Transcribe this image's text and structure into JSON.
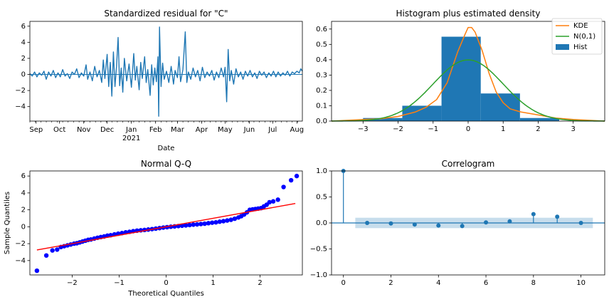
{
  "chart_data": [
    {
      "type": "line",
      "title": "Standardized residual for \"C\"",
      "xlabel": "Date",
      "ylabel": "",
      "ylim": [
        -5.8,
        6.6
      ],
      "yticks": [
        -4,
        -2,
        0,
        2,
        4,
        6
      ],
      "x_start": "2020-08-24",
      "x_end": "2021-08-08",
      "xticks": [
        {
          "label": "Sep",
          "date": "2020-09-01"
        },
        {
          "label": "Oct",
          "date": "2020-10-01"
        },
        {
          "label": "Nov",
          "date": "2020-11-01"
        },
        {
          "label": "Dec",
          "date": "2020-12-01"
        },
        {
          "label": "Jan",
          "date": "2021-01-01",
          "sublabel": "2021"
        },
        {
          "label": "Feb",
          "date": "2021-02-01"
        },
        {
          "label": "Mar",
          "date": "2021-03-01"
        },
        {
          "label": "Apr",
          "date": "2021-04-01"
        },
        {
          "label": "May",
          "date": "2021-05-01"
        },
        {
          "label": "Jun",
          "date": "2021-06-01"
        },
        {
          "label": "Jul",
          "date": "2021-07-01"
        },
        {
          "label": "Aug",
          "date": "2021-08-01"
        }
      ],
      "series": [
        {
          "color": "#1f77b4",
          "points": [
            [
              "2020-08-24",
              0.1
            ],
            [
              "2020-08-27",
              -0.2
            ],
            [
              "2020-08-30",
              0.3
            ],
            [
              "2020-09-02",
              -0.3
            ],
            [
              "2020-09-05",
              0.2
            ],
            [
              "2020-09-08",
              -0.1
            ],
            [
              "2020-09-11",
              0.4
            ],
            [
              "2020-09-14",
              -0.6
            ],
            [
              "2020-09-17",
              0.3
            ],
            [
              "2020-09-20",
              -0.2
            ],
            [
              "2020-09-23",
              0.5
            ],
            [
              "2020-09-26",
              -0.4
            ],
            [
              "2020-09-29",
              0.2
            ],
            [
              "2020-10-02",
              -0.3
            ],
            [
              "2020-10-05",
              0.6
            ],
            [
              "2020-10-08",
              -0.2
            ],
            [
              "2020-10-11",
              0.1
            ],
            [
              "2020-10-14",
              -0.5
            ],
            [
              "2020-10-17",
              0.3
            ],
            [
              "2020-10-20",
              0.0
            ],
            [
              "2020-10-23",
              0.7
            ],
            [
              "2020-10-26",
              -0.4
            ],
            [
              "2020-10-29",
              0.2
            ],
            [
              "2020-11-01",
              -0.2
            ],
            [
              "2020-11-04",
              1.2
            ],
            [
              "2020-11-06",
              -0.6
            ],
            [
              "2020-11-09",
              0.3
            ],
            [
              "2020-11-12",
              -0.8
            ],
            [
              "2020-11-15",
              1.0
            ],
            [
              "2020-11-18",
              -0.3
            ],
            [
              "2020-11-21",
              0.5
            ],
            [
              "2020-11-24",
              -1.0
            ],
            [
              "2020-11-26",
              1.8
            ],
            [
              "2020-11-28",
              -0.5
            ],
            [
              "2020-12-01",
              2.5
            ],
            [
              "2020-12-03",
              -1.5
            ],
            [
              "2020-12-05",
              1.5
            ],
            [
              "2020-12-07",
              -2.7
            ],
            [
              "2020-12-09",
              2.8
            ],
            [
              "2020-12-11",
              -1.5
            ],
            [
              "2020-12-13",
              1.0
            ],
            [
              "2020-12-15",
              4.6
            ],
            [
              "2020-12-17",
              -1.4
            ],
            [
              "2020-12-19",
              0.8
            ],
            [
              "2020-12-21",
              -2.2
            ],
            [
              "2020-12-23",
              2.0
            ],
            [
              "2020-12-26",
              -0.8
            ],
            [
              "2020-12-29",
              1.3
            ],
            [
              "2021-01-01",
              -1.6
            ],
            [
              "2021-01-04",
              2.6
            ],
            [
              "2021-01-06",
              -0.7
            ],
            [
              "2021-01-08",
              1.0
            ],
            [
              "2021-01-11",
              -1.9
            ],
            [
              "2021-01-13",
              1.5
            ],
            [
              "2021-01-15",
              -0.5
            ],
            [
              "2021-01-18",
              2.2
            ],
            [
              "2021-01-20",
              -1.0
            ],
            [
              "2021-01-22",
              0.6
            ],
            [
              "2021-01-25",
              -2.6
            ],
            [
              "2021-01-27",
              1.2
            ],
            [
              "2021-01-29",
              -1.3
            ],
            [
              "2021-01-31",
              0.8
            ],
            [
              "2021-02-02",
              -0.9
            ],
            [
              "2021-02-04",
              2.2
            ],
            [
              "2021-02-05",
              -5.2
            ],
            [
              "2021-02-06",
              5.9
            ],
            [
              "2021-02-08",
              -1.5
            ],
            [
              "2021-02-10",
              1.4
            ],
            [
              "2021-02-12",
              -0.6
            ],
            [
              "2021-02-15",
              0.4
            ],
            [
              "2021-02-18",
              -1.0
            ],
            [
              "2021-02-21",
              1.0
            ],
            [
              "2021-02-24",
              -1.2
            ],
            [
              "2021-02-26",
              0.5
            ],
            [
              "2021-03-01",
              -0.4
            ],
            [
              "2021-03-03",
              2.2
            ],
            [
              "2021-03-05",
              -0.9
            ],
            [
              "2021-03-08",
              0.6
            ],
            [
              "2021-03-11",
              5.3
            ],
            [
              "2021-03-13",
              -1.0
            ],
            [
              "2021-03-15",
              0.3
            ],
            [
              "2021-03-18",
              -0.6
            ],
            [
              "2021-03-21",
              0.8
            ],
            [
              "2021-03-24",
              -0.3
            ],
            [
              "2021-03-27",
              0.5
            ],
            [
              "2021-03-30",
              -0.8
            ],
            [
              "2021-04-02",
              0.9
            ],
            [
              "2021-04-05",
              -0.4
            ],
            [
              "2021-04-08",
              0.3
            ],
            [
              "2021-04-11",
              -0.2
            ],
            [
              "2021-04-14",
              0.5
            ],
            [
              "2021-04-17",
              -0.7
            ],
            [
              "2021-04-20",
              0.3
            ],
            [
              "2021-04-23",
              -0.4
            ],
            [
              "2021-04-26",
              0.8
            ],
            [
              "2021-04-29",
              -0.3
            ],
            [
              "2021-05-01",
              0.9
            ],
            [
              "2021-05-03",
              -3.4
            ],
            [
              "2021-05-05",
              3.1
            ],
            [
              "2021-05-07",
              -0.8
            ],
            [
              "2021-05-09",
              0.5
            ],
            [
              "2021-05-12",
              -1.2
            ],
            [
              "2021-05-15",
              0.7
            ],
            [
              "2021-05-18",
              -0.3
            ],
            [
              "2021-05-21",
              0.3
            ],
            [
              "2021-05-24",
              -0.6
            ],
            [
              "2021-05-27",
              0.4
            ],
            [
              "2021-05-30",
              -0.2
            ],
            [
              "2021-06-02",
              0.5
            ],
            [
              "2021-06-05",
              -0.3
            ],
            [
              "2021-06-08",
              0.2
            ],
            [
              "2021-06-11",
              -0.5
            ],
            [
              "2021-06-14",
              0.4
            ],
            [
              "2021-06-17",
              -0.1
            ],
            [
              "2021-06-20",
              0.3
            ],
            [
              "2021-06-23",
              -0.4
            ],
            [
              "2021-06-26",
              0.2
            ],
            [
              "2021-06-29",
              -0.2
            ],
            [
              "2021-07-02",
              0.4
            ],
            [
              "2021-07-05",
              -0.3
            ],
            [
              "2021-07-08",
              0.3
            ],
            [
              "2021-07-11",
              -0.2
            ],
            [
              "2021-07-14",
              0.2
            ],
            [
              "2021-07-17",
              -0.1
            ],
            [
              "2021-07-20",
              0.4
            ],
            [
              "2021-07-23",
              -0.2
            ],
            [
              "2021-07-26",
              0.3
            ],
            [
              "2021-07-29",
              0.1
            ],
            [
              "2021-08-01",
              0.4
            ],
            [
              "2021-08-04",
              0.2
            ],
            [
              "2021-08-06",
              0.7
            ],
            [
              "2021-08-08",
              0.4
            ]
          ]
        }
      ],
      "reference_lines": [
        {
          "y": 0,
          "color": "#1f77b4"
        }
      ]
    },
    {
      "type": "bar",
      "title": "Histogram plus estimated density",
      "xlim": [
        -3.9,
        3.9
      ],
      "ylim": [
        0,
        0.65
      ],
      "xticks": [
        -3,
        -2,
        -1,
        0,
        1,
        2,
        3
      ],
      "yticks": [
        0.0,
        0.1,
        0.2,
        0.3,
        0.4,
        0.5,
        0.6
      ],
      "legend_position": "top-right",
      "histogram": {
        "name": "Hist",
        "color": "#1f77b4",
        "bins": [
          {
            "from": -3.0,
            "to": -1.88,
            "value": 0.02
          },
          {
            "from": -1.88,
            "to": -0.76,
            "value": 0.1
          },
          {
            "from": -0.76,
            "to": 0.36,
            "value": 0.55
          },
          {
            "from": 0.36,
            "to": 1.48,
            "value": 0.18
          },
          {
            "from": 1.48,
            "to": 2.6,
            "value": 0.02
          }
        ]
      },
      "series": [
        {
          "name": "KDE",
          "color": "#ff7f0e",
          "x": [
            -3.9,
            -3.0,
            -2.5,
            -2.0,
            -1.5,
            -1.2,
            -0.9,
            -0.6,
            -0.3,
            -0.1,
            0.0,
            0.1,
            0.2,
            0.4,
            0.6,
            0.8,
            1.0,
            1.2,
            1.5,
            2.0,
            2.5,
            3.0,
            3.9
          ],
          "y": [
            0.0,
            0.01,
            0.015,
            0.03,
            0.06,
            0.09,
            0.14,
            0.25,
            0.45,
            0.56,
            0.61,
            0.61,
            0.58,
            0.46,
            0.31,
            0.19,
            0.12,
            0.08,
            0.06,
            0.04,
            0.02,
            0.01,
            0.0
          ]
        },
        {
          "name": "N(0,1)",
          "color": "#2ca02c",
          "distribution": "normal",
          "mean": 0,
          "sd": 1
        }
      ]
    },
    {
      "type": "scatter",
      "title": "Normal Q-Q",
      "xlabel": "Theoretical Quantiles",
      "ylabel": "Sample Quantiles",
      "xlim": [
        -2.9,
        2.9
      ],
      "ylim": [
        -5.7,
        6.6
      ],
      "xticks": [
        -2,
        -1,
        0,
        1,
        2
      ],
      "yticks": [
        -4,
        -2,
        0,
        2,
        4,
        6
      ],
      "series": [
        {
          "color": "#0000ff",
          "x": [
            -2.75,
            -2.55,
            -2.42,
            -2.32,
            -2.24,
            -2.17,
            -2.1,
            -2.03,
            -1.96,
            -1.9,
            -1.84,
            -1.78,
            -1.72,
            -1.66,
            -1.6,
            -1.53,
            -1.46,
            -1.39,
            -1.32,
            -1.25,
            -1.18,
            -1.1,
            -1.02,
            -0.94,
            -0.86,
            -0.78,
            -0.7,
            -0.62,
            -0.54,
            -0.46,
            -0.38,
            -0.3,
            -0.22,
            -0.14,
            -0.06,
            0.02,
            0.1,
            0.18,
            0.26,
            0.34,
            0.42,
            0.5,
            0.58,
            0.66,
            0.74,
            0.82,
            0.9,
            0.98,
            1.06,
            1.14,
            1.22,
            1.3,
            1.38,
            1.46,
            1.54,
            1.6,
            1.66,
            1.72,
            1.78,
            1.84,
            1.9,
            1.96,
            2.02,
            2.08,
            2.14,
            2.2,
            2.28,
            2.38,
            2.5,
            2.66,
            2.78
          ],
          "y": [
            -5.2,
            -3.4,
            -2.8,
            -2.7,
            -2.4,
            -2.3,
            -2.2,
            -2.1,
            -2.0,
            -1.95,
            -1.85,
            -1.75,
            -1.65,
            -1.55,
            -1.5,
            -1.4,
            -1.3,
            -1.22,
            -1.15,
            -1.05,
            -1.0,
            -0.9,
            -0.82,
            -0.75,
            -0.66,
            -0.6,
            -0.52,
            -0.46,
            -0.42,
            -0.38,
            -0.33,
            -0.28,
            -0.22,
            -0.16,
            -0.1,
            -0.05,
            0.0,
            0.04,
            0.08,
            0.12,
            0.16,
            0.2,
            0.25,
            0.28,
            0.32,
            0.36,
            0.42,
            0.48,
            0.52,
            0.6,
            0.66,
            0.74,
            0.82,
            0.95,
            1.1,
            1.25,
            1.45,
            1.7,
            2.0,
            2.05,
            2.1,
            2.15,
            2.2,
            2.4,
            2.6,
            2.9,
            3.0,
            3.2,
            4.7,
            5.5,
            6.0
          ]
        }
      ],
      "reference_line": {
        "color": "#ff0000",
        "points": [
          [
            -2.75,
            -2.75
          ],
          [
            2.75,
            2.75
          ]
        ]
      }
    },
    {
      "type": "scatter",
      "title": "Correlogram",
      "xlim": [
        -0.5,
        11.0
      ],
      "ylim": [
        -1.0,
        1.0
      ],
      "xticks": [
        0,
        2,
        4,
        6,
        8,
        10
      ],
      "yticks": [
        -1.0,
        -0.5,
        0.0,
        0.5,
        1.0
      ],
      "confidence_band": {
        "x_from": 0.5,
        "x_to": 10.5,
        "lower": -0.1,
        "upper": 0.1,
        "color": "#1f77b4"
      },
      "series": [
        {
          "color": "#1f77b4",
          "x": [
            0,
            1,
            2,
            3,
            4,
            5,
            6,
            7,
            8,
            9,
            10
          ],
          "y": [
            1.0,
            0.0,
            -0.01,
            -0.03,
            -0.05,
            -0.06,
            0.01,
            0.03,
            0.17,
            0.12,
            0.0
          ]
        }
      ]
    }
  ]
}
